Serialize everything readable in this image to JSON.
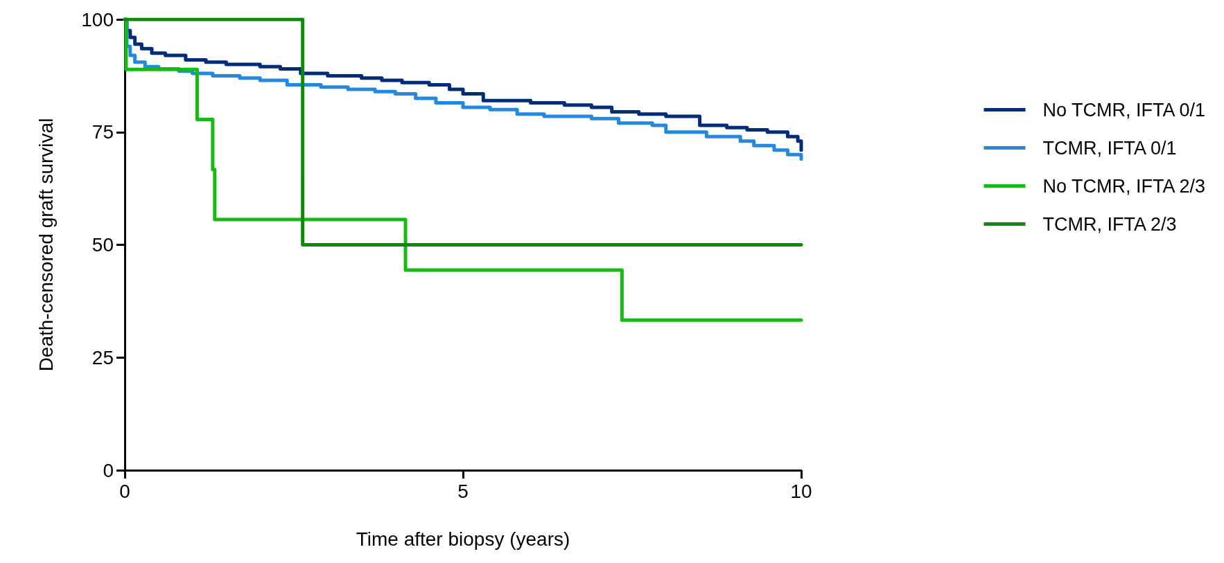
{
  "chart_data": {
    "type": "step",
    "xlabel": "Time after biopsy (years)",
    "ylabel": "Death-censored graft survival",
    "xlim": [
      0,
      10
    ],
    "xticks": [
      0,
      5,
      10
    ],
    "ylim": [
      0,
      100
    ],
    "yticks": [
      0,
      25,
      50,
      75,
      100
    ],
    "grid": false,
    "legend": "right",
    "marker": "none",
    "line_style": "solid",
    "series": [
      {
        "name": "No TCMR, IFTA 0/1",
        "color": "#022b7a",
        "x": [
          0,
          0.03,
          0.08,
          0.15,
          0.25,
          0.4,
          0.6,
          0.9,
          1.2,
          1.5,
          2.0,
          2.3,
          2.6,
          3.0,
          3.5,
          3.8,
          4.1,
          4.5,
          4.8,
          5.0,
          5.3,
          6.0,
          6.5,
          6.9,
          7.2,
          7.6,
          8.0,
          8.5,
          8.9,
          9.2,
          9.5,
          9.8,
          9.95,
          10
        ],
        "values": [
          100,
          97.5,
          96,
          94.5,
          93.5,
          92.5,
          92,
          91,
          90.5,
          90,
          89.5,
          89,
          88,
          87.5,
          87,
          86.5,
          86,
          85.5,
          84.5,
          83.5,
          82,
          81.5,
          81,
          80.5,
          79.5,
          79,
          78.5,
          76.5,
          76,
          75.5,
          75,
          74,
          73,
          71
        ]
      },
      {
        "name": "TCMR, IFTA 0/1",
        "color": "#2489dd",
        "x": [
          0,
          0.03,
          0.08,
          0.15,
          0.3,
          0.5,
          0.8,
          1.0,
          1.3,
          1.7,
          2.0,
          2.4,
          2.9,
          3.3,
          3.7,
          4.0,
          4.3,
          4.6,
          5.0,
          5.4,
          5.8,
          6.2,
          6.9,
          7.3,
          7.8,
          8.0,
          8.6,
          9.1,
          9.3,
          9.6,
          9.8,
          10
        ],
        "values": [
          100,
          94,
          92,
          90.5,
          89.5,
          89,
          88.5,
          88,
          87.5,
          87,
          86.5,
          85.5,
          85,
          84.5,
          84,
          83.5,
          82.5,
          81.5,
          80.5,
          80,
          79,
          78.5,
          78,
          77,
          76.5,
          75,
          74,
          73,
          72,
          71,
          70,
          69
        ]
      },
      {
        "name": "No TCMR, IFTA 2/3",
        "color": "#18b914",
        "x": [
          0,
          0.02,
          1.07,
          1.3,
          1.33,
          4.15,
          7.35,
          10
        ],
        "values": [
          100,
          88.9,
          77.8,
          66.7,
          55.6,
          44.4,
          33.3,
          33.3
        ]
      },
      {
        "name": "TCMR, IFTA 2/3",
        "color": "#0e8a0a",
        "x": [
          0,
          2.63,
          10
        ],
        "values": [
          100,
          50,
          50
        ]
      }
    ]
  }
}
